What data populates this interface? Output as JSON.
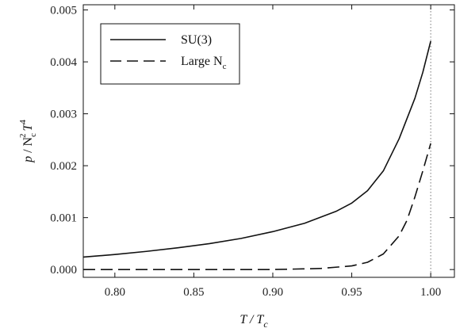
{
  "chart_data": {
    "type": "line",
    "xlabel": {
      "main": "T / T",
      "sub": "c"
    },
    "ylabel": {
      "p": "p",
      "n": " / N",
      "sub": "c",
      "sup2": "2",
      "t": "T",
      "sup4": "4"
    },
    "xlim": [
      0.78,
      1.015
    ],
    "ylim": [
      -0.00015,
      0.0051
    ],
    "x_ticks": [
      0.8,
      0.85,
      0.9,
      0.95,
      1.0
    ],
    "y_ticks": [
      0.0,
      0.001,
      0.002,
      0.003,
      0.004,
      0.005
    ],
    "x_tick_labels": [
      "0.80",
      "0.85",
      "0.90",
      "0.95",
      "1.00"
    ],
    "y_tick_labels": [
      "0.000",
      "0.001",
      "0.002",
      "0.003",
      "0.004",
      "0.005"
    ],
    "reference_line_x": 1.0,
    "legend_position": "top-left",
    "series": [
      {
        "name": "SU(3)",
        "style": "solid",
        "x": [
          0.78,
          0.8,
          0.82,
          0.84,
          0.86,
          0.88,
          0.9,
          0.92,
          0.94,
          0.95,
          0.96,
          0.97,
          0.98,
          0.99,
          0.995,
          1.0
        ],
        "y": [
          0.00024,
          0.00029,
          0.00035,
          0.00042,
          0.0005,
          0.0006,
          0.00073,
          0.00089,
          0.00112,
          0.00128,
          0.00152,
          0.0019,
          0.00252,
          0.0033,
          0.0038,
          0.0044
        ]
      },
      {
        "name": "Large N",
        "name_sub": "c",
        "style": "dashed",
        "x": [
          0.78,
          0.85,
          0.9,
          0.93,
          0.95,
          0.96,
          0.97,
          0.98,
          0.985,
          0.99,
          0.995,
          1.0
        ],
        "y": [
          0.0,
          0.0,
          0.0,
          2e-05,
          7e-05,
          0.00014,
          0.0003,
          0.00065,
          0.00095,
          0.0014,
          0.0019,
          0.00243
        ]
      }
    ]
  }
}
